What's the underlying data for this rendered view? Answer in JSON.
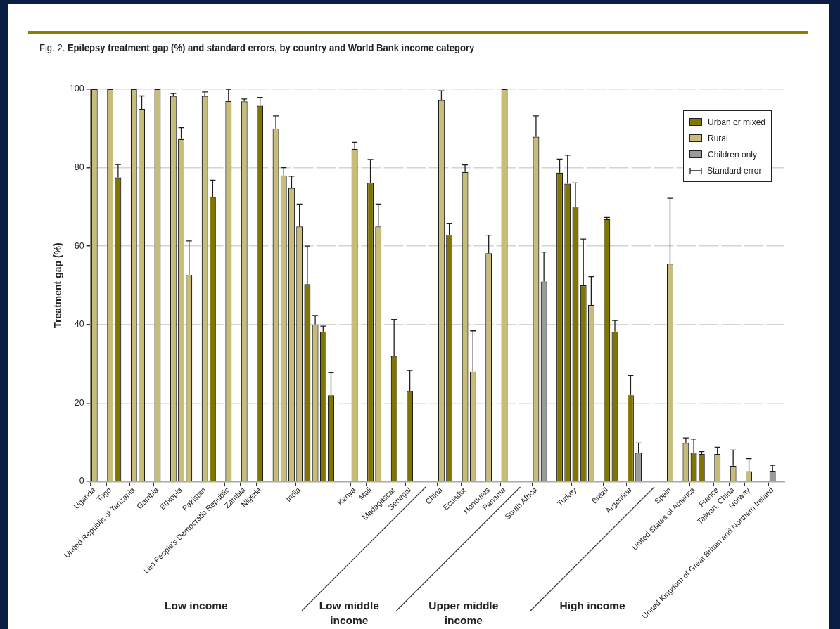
{
  "chart_data": {
    "type": "bar",
    "title": "Fig. 2. Epilepsy treatment gap (%) and standard errors, by country and World Bank income category",
    "ylabel": "Treatment gap (%)",
    "categories": [
      "Uganda",
      null,
      "Togo",
      null,
      null,
      "United Republic of Tanzania",
      null,
      null,
      "Gambia",
      null,
      null,
      "Ethiopia",
      null,
      null,
      "Pakistan",
      null,
      null,
      "Lao People's Democratic Republic",
      null,
      "Zambia",
      null,
      "Nigeria",
      null,
      null,
      null,
      null,
      "India",
      null,
      null,
      null,
      null,
      null,
      null,
      "Kenya",
      null,
      "Mali",
      null,
      null,
      "Madagascar",
      null,
      "Senegal",
      null,
      null,
      null,
      "China",
      null,
      null,
      "Ecuador",
      null,
      null,
      "Honduras",
      null,
      "Panama",
      null,
      null,
      null,
      "South Africa",
      null,
      null,
      null,
      null,
      "Turkey",
      null,
      null,
      null,
      "Brazil",
      null,
      null,
      "Argentina",
      null,
      null,
      null,
      null,
      "Spain",
      null,
      null,
      "United States of America",
      null,
      null,
      "France",
      null,
      "Taiwan, China",
      null,
      "Norway",
      null,
      null,
      "United Kingdom of Great Britain and Northern Ireland",
      null
    ],
    "series": [
      {
        "name": "Urban or mixed",
        "color": "#807500",
        "values": [
          null,
          null,
          null,
          77.5,
          null,
          null,
          null,
          null,
          null,
          null,
          null,
          null,
          null,
          null,
          null,
          72.5,
          null,
          null,
          null,
          null,
          null,
          95.8,
          null,
          null,
          null,
          null,
          null,
          50.3,
          null,
          38.2,
          22,
          null,
          null,
          null,
          null,
          76.1,
          null,
          null,
          32,
          null,
          23,
          null,
          null,
          null,
          null,
          62.9,
          null,
          null,
          null,
          null,
          null,
          null,
          null,
          null,
          null,
          null,
          null,
          null,
          null,
          78.7,
          75.9,
          70,
          50,
          null,
          null,
          66.9,
          38.2,
          null,
          22,
          null,
          null,
          null,
          null,
          null,
          null,
          null,
          7.3,
          7,
          null,
          null,
          null,
          null,
          null,
          null,
          null,
          null,
          null,
          null
        ],
        "errors": [
          null,
          null,
          null,
          [
            77.5,
            80.8
          ],
          null,
          null,
          null,
          null,
          null,
          null,
          null,
          null,
          null,
          null,
          null,
          [
            72.5,
            76.8
          ],
          null,
          null,
          null,
          null,
          null,
          [
            95.8,
            97.9
          ],
          null,
          null,
          null,
          null,
          null,
          [
            50.3,
            60
          ],
          null,
          [
            38.2,
            39.6
          ],
          [
            22,
            27.7
          ],
          null,
          null,
          null,
          null,
          [
            76.1,
            82.1
          ],
          null,
          null,
          [
            32,
            41.3
          ],
          null,
          [
            23,
            28.3
          ],
          null,
          null,
          null,
          null,
          [
            62.9,
            65.7
          ],
          null,
          null,
          null,
          null,
          null,
          null,
          null,
          null,
          null,
          null,
          null,
          null,
          null,
          [
            78.7,
            82.2
          ],
          [
            75.9,
            83.2
          ],
          [
            70,
            76.1
          ],
          [
            50,
            61.8
          ],
          null,
          null,
          [
            66.9,
            67.3
          ],
          [
            38.2,
            41
          ],
          null,
          [
            22,
            27
          ],
          null,
          null,
          null,
          null,
          null,
          null,
          null,
          [
            7.3,
            10.8
          ],
          [
            7,
            7.6
          ],
          null,
          null,
          null,
          null,
          null,
          null,
          null,
          null,
          null,
          null
        ]
      },
      {
        "name": "Rural",
        "color": "#c8bd78",
        "values": [
          100,
          null,
          100,
          null,
          null,
          100,
          95,
          null,
          100,
          null,
          98.3,
          87.3,
          52.7,
          null,
          98.3,
          null,
          null,
          97,
          null,
          96.9,
          null,
          null,
          null,
          90,
          78,
          74.8,
          65,
          null,
          40,
          null,
          null,
          null,
          null,
          84.8,
          null,
          null,
          65,
          null,
          null,
          null,
          null,
          null,
          null,
          null,
          97.2,
          null,
          null,
          78.9,
          28,
          null,
          58.2,
          null,
          100,
          null,
          null,
          null,
          87.9,
          null,
          null,
          null,
          null,
          null,
          null,
          45,
          null,
          null,
          null,
          null,
          null,
          null,
          null,
          null,
          null,
          55.5,
          null,
          9.8,
          null,
          null,
          null,
          7,
          null,
          4,
          null,
          2.6,
          null,
          null,
          null,
          null
        ],
        "errors": [
          null,
          null,
          null,
          null,
          null,
          null,
          [
            95,
            98.3
          ],
          null,
          null,
          null,
          [
            98.3,
            98.9
          ],
          [
            87.3,
            90.2
          ],
          [
            52.7,
            61.3
          ],
          null,
          [
            98.3,
            99.3
          ],
          null,
          null,
          [
            97,
            100
          ],
          null,
          [
            96.9,
            97.5
          ],
          null,
          null,
          null,
          [
            90,
            93.2
          ],
          [
            78,
            80
          ],
          [
            74.8,
            77.8
          ],
          [
            65,
            70.7
          ],
          null,
          [
            40,
            42.3
          ],
          null,
          null,
          null,
          null,
          [
            84.8,
            86.5
          ],
          null,
          null,
          [
            65,
            70.7
          ],
          null,
          null,
          null,
          null,
          null,
          null,
          null,
          [
            97.2,
            99.6
          ],
          null,
          null,
          [
            78.9,
            80.7
          ],
          [
            28,
            38.4
          ],
          null,
          [
            58.2,
            62.8
          ],
          null,
          null,
          null,
          null,
          null,
          [
            87.9,
            93.2
          ],
          null,
          null,
          null,
          null,
          null,
          null,
          [
            45,
            52.2
          ],
          null,
          null,
          null,
          null,
          null,
          null,
          null,
          null,
          null,
          [
            55.5,
            72.2
          ],
          null,
          [
            9.8,
            11.1
          ],
          null,
          null,
          null,
          [
            7,
            8.7
          ],
          null,
          [
            4,
            8
          ],
          null,
          [
            2.6,
            5.8
          ],
          null,
          null,
          null,
          null
        ]
      },
      {
        "name": "Children only",
        "color": "#9b9b9b",
        "values": [
          null,
          null,
          null,
          null,
          null,
          null,
          null,
          null,
          null,
          null,
          null,
          null,
          null,
          null,
          null,
          null,
          null,
          null,
          null,
          null,
          null,
          null,
          null,
          null,
          null,
          null,
          null,
          null,
          null,
          null,
          null,
          null,
          null,
          null,
          null,
          null,
          null,
          null,
          null,
          null,
          null,
          null,
          null,
          null,
          null,
          null,
          null,
          null,
          null,
          null,
          null,
          null,
          null,
          null,
          null,
          null,
          null,
          51,
          null,
          null,
          null,
          null,
          null,
          null,
          null,
          null,
          null,
          null,
          null,
          7.3,
          null,
          null,
          null,
          null,
          null,
          null,
          null,
          null,
          null,
          null,
          null,
          null,
          null,
          null,
          null,
          null,
          2.7,
          null
        ],
        "errors": [
          null,
          null,
          null,
          null,
          null,
          null,
          null,
          null,
          null,
          null,
          null,
          null,
          null,
          null,
          null,
          null,
          null,
          null,
          null,
          null,
          null,
          null,
          null,
          null,
          null,
          null,
          null,
          null,
          null,
          null,
          null,
          null,
          null,
          null,
          null,
          null,
          null,
          null,
          null,
          null,
          null,
          null,
          null,
          null,
          null,
          null,
          null,
          null,
          null,
          null,
          null,
          null,
          null,
          null,
          null,
          null,
          null,
          [
            51,
            58.5
          ],
          null,
          null,
          null,
          null,
          null,
          null,
          null,
          null,
          null,
          null,
          null,
          [
            7.3,
            9.8
          ],
          null,
          null,
          null,
          null,
          null,
          null,
          null,
          null,
          null,
          null,
          null,
          null,
          null,
          null,
          null,
          null,
          [
            2.7,
            4.1
          ],
          null
        ]
      }
    ],
    "ylim": [
      0,
      100
    ],
    "yticks": [
      0,
      20,
      40,
      60,
      80,
      100
    ],
    "grid": "y",
    "legend": "top right",
    "annotations": [
      "Standard error",
      "Low income",
      "Low middle\nincome",
      "Upper middle\nincome",
      "High income"
    ]
  }
}
